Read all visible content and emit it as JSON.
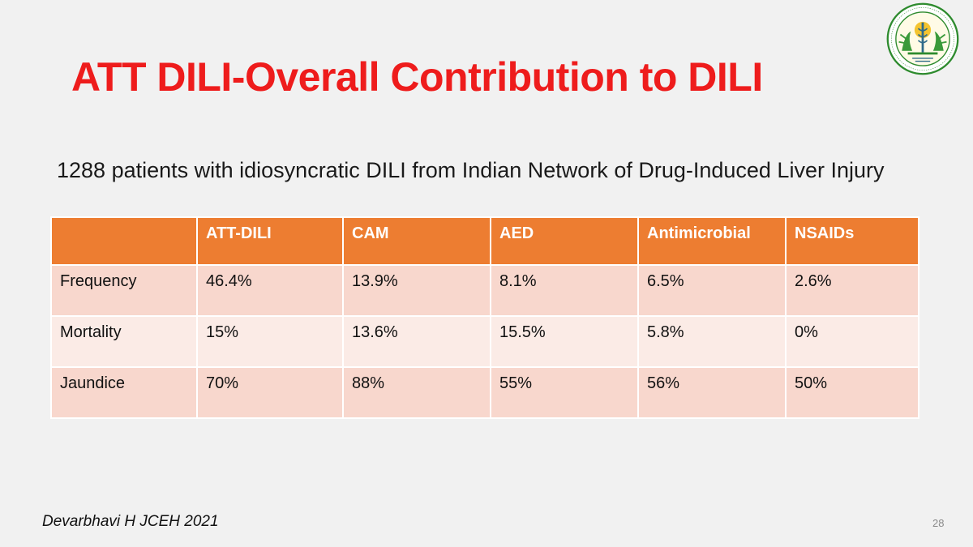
{
  "slide": {
    "title": "ATT DILI-Overall Contribution to DILI",
    "subtitle": "1288 patients with idiosyncratic DILI from Indian Network of Drug-Induced Liver Injury",
    "citation": "Devarbhavi H JCEH 2021",
    "page_number": "28",
    "logo": {
      "icon": "institute-seal-icon",
      "colors": {
        "ring": "#2e8b2e",
        "inner": "#f4c430",
        "tree": "#3a9a3a"
      }
    }
  },
  "table": {
    "headers": [
      "",
      "ATT-DILI",
      "CAM",
      "AED",
      "Antimicrobial",
      "NSAIDs"
    ],
    "rows": [
      [
        "Frequency",
        "46.4%",
        "13.9%",
        "8.1%",
        "6.5%",
        "2.6%"
      ],
      [
        "Mortality",
        "15%",
        "13.6%",
        "15.5%",
        "5.8%",
        "0%"
      ],
      [
        "Jaundice",
        "70%",
        "88%",
        "55%",
        "56%",
        "50%"
      ]
    ]
  },
  "colors": {
    "title": "#ee1c1c",
    "header_bg": "#ed7d31",
    "row_odd_bg": "#f8d7cd",
    "row_even_bg": "#fbebe6",
    "background": "#f1f1f1"
  }
}
